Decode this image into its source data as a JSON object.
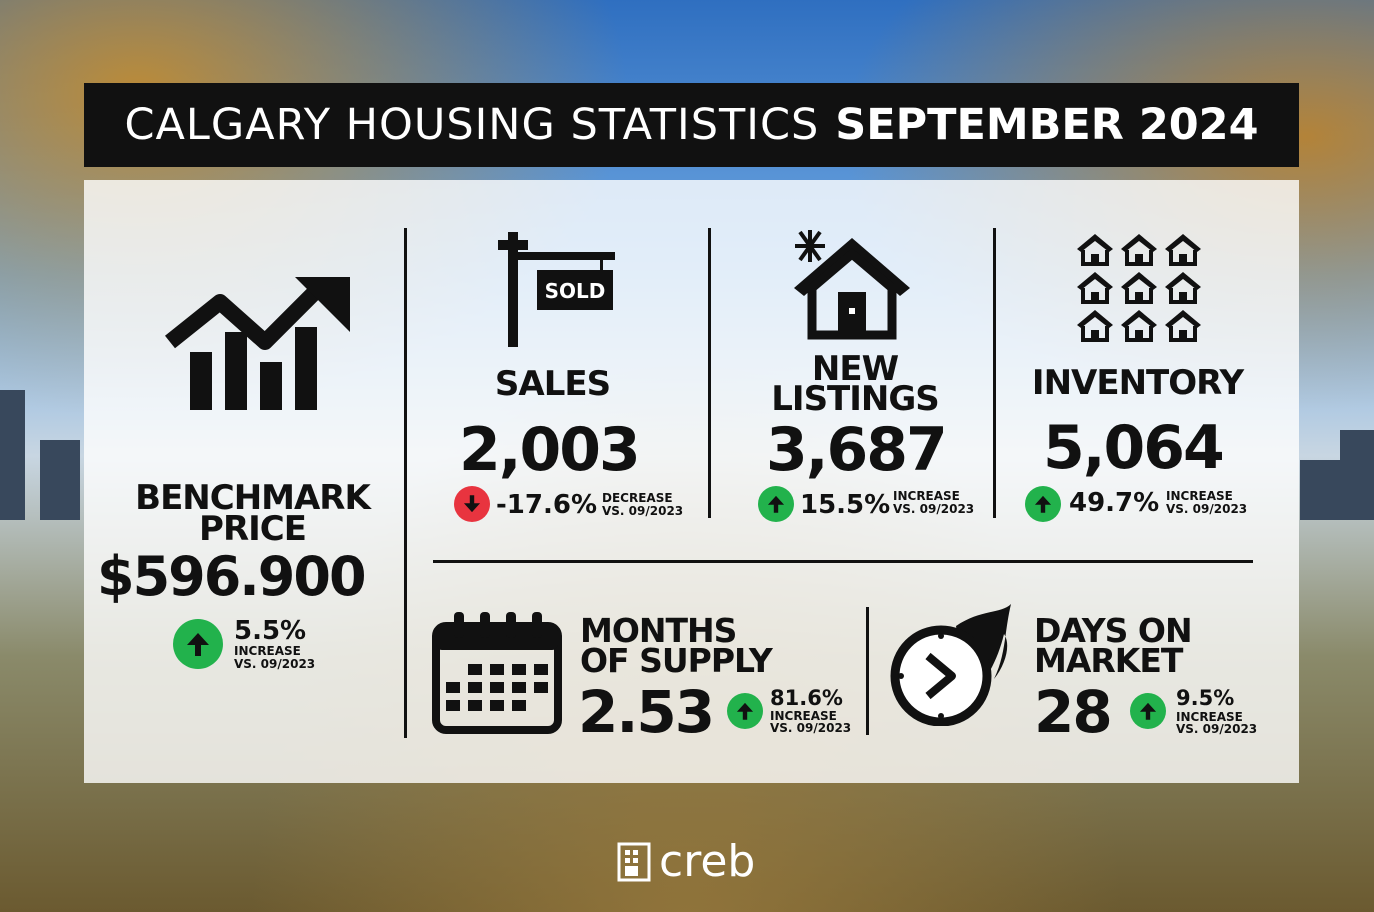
{
  "header": {
    "title_regular": "CALGARY HOUSING STATISTICS",
    "title_bold": "SEPTEMBER 2024"
  },
  "colors": {
    "up": "#22b24c",
    "down": "#e8343f",
    "dark": "#111111"
  },
  "benchmark": {
    "label_line1": "BENCHMARK",
    "label_line2": "PRICE",
    "value": "$596.900",
    "pct": "5.5%",
    "dir": "up",
    "note1": "INCREASE",
    "note2": "VS. 09/2023",
    "icon": "rising-chart-icon"
  },
  "sales": {
    "label": "SALES",
    "sign": "SOLD",
    "value": "2,003",
    "pct": "-17.6%",
    "dir": "down",
    "note1": "DECREASE",
    "note2": "VS. 09/2023",
    "icon": "sold-sign-icon"
  },
  "new_listings": {
    "label_line1": "NEW",
    "label_line2": "LISTINGS",
    "value": "3,687",
    "pct": "15.5%",
    "dir": "up",
    "note1": "INCREASE",
    "note2": "VS. 09/2023",
    "icon": "new-house-icon"
  },
  "inventory": {
    "label": "INVENTORY",
    "value": "5,064",
    "pct": "49.7%",
    "dir": "up",
    "note1": "INCREASE",
    "note2": "VS. 09/2023",
    "icon": "houses-grid-icon"
  },
  "months_supply": {
    "label_line1": "MONTHS",
    "label_line2": "OF SUPPLY",
    "value": "2.53",
    "pct": "81.6%",
    "dir": "up",
    "note1": "INCREASE",
    "note2": "VS. 09/2023",
    "icon": "calendar-icon"
  },
  "days_on_market": {
    "label_line1": "DAYS ON",
    "label_line2": "MARKET",
    "value": "28",
    "pct": "9.5%",
    "dir": "up",
    "note1": "INCREASE",
    "note2": "VS. 09/2023",
    "icon": "fast-clock-icon"
  },
  "footer": {
    "logo_text": "creb",
    "icon": "creb-logo-icon"
  }
}
